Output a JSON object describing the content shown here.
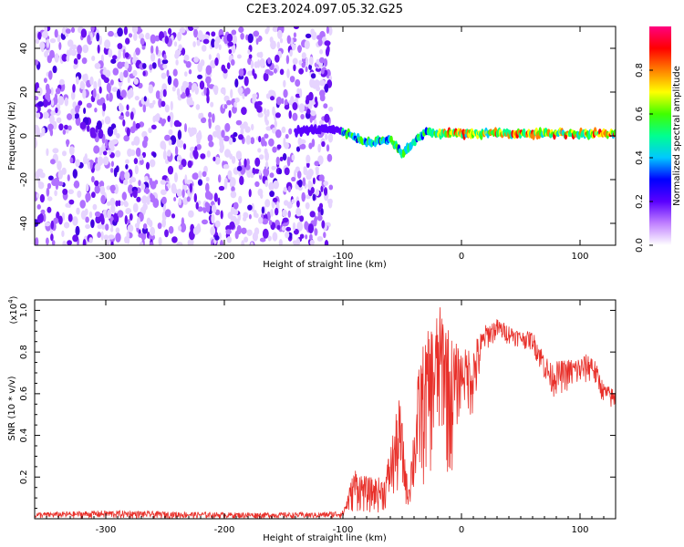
{
  "figure": {
    "title": "C2E3.2024.097.05.32.G25"
  },
  "chart_data": [
    {
      "type": "heatmap",
      "xlabel": "Height of straight line (km)",
      "ylabel": "Frequency (Hz)",
      "xlim": [
        -360,
        130
      ],
      "ylim": [
        -50,
        50
      ],
      "x_ticks": [
        -300,
        -200,
        -100,
        0,
        100
      ],
      "y_ticks": [
        -40,
        -20,
        0,
        20,
        40
      ],
      "colorbar": {
        "label": "Normalized spectral amplitude",
        "range": [
          0,
          1
        ],
        "ticks": [
          "0.0",
          "0.2",
          "0.4",
          "0.6",
          "0.8"
        ],
        "tick_values": [
          0.0,
          0.2,
          0.4,
          0.6,
          0.8
        ],
        "colors": [
          "#ffffff",
          "#c080ff",
          "#5a00ff",
          "#0000ff",
          "#00c8ff",
          "#00ff90",
          "#40ff00",
          "#ffff00",
          "#ff8000",
          "#ff0000",
          "#ff0080"
        ]
      },
      "noise_region": {
        "x_range": [
          -360,
          -110
        ],
        "f_range": [
          -50,
          50
        ]
      },
      "signal_track": [
        {
          "x": -140,
          "f": 2
        },
        {
          "x": -120,
          "f": 3
        },
        {
          "x": -100,
          "f": 2
        },
        {
          "x": -80,
          "f": -3
        },
        {
          "x": -60,
          "f": -2
        },
        {
          "x": -50,
          "f": -8
        },
        {
          "x": -40,
          "f": -3
        },
        {
          "x": -30,
          "f": 2
        },
        {
          "x": -20,
          "f": 1
        },
        {
          "x": 0,
          "f": 1
        },
        {
          "x": 50,
          "f": 1
        },
        {
          "x": 100,
          "f": 1
        },
        {
          "x": 130,
          "f": 1
        }
      ]
    },
    {
      "type": "line",
      "xlabel": "Height of straight line (km)",
      "ylabel": "SNR (10 * v/v)",
      "y_multiplier": "(x10",
      "y_multiplier_exp": "4",
      "y_multiplier_close": ")",
      "xlim": [
        -360,
        130
      ],
      "ylim": [
        0,
        1.05
      ],
      "x_ticks": [
        -300,
        -200,
        -100,
        0,
        100
      ],
      "y_ticks": [
        0.2,
        0.4,
        0.6,
        0.8,
        1.0
      ],
      "y_tick_labels": [
        "0.2",
        "0.4",
        "0.6",
        "0.8",
        "1.0"
      ],
      "series": [
        {
          "color": "#e8302a",
          "envelope": [
            {
              "x": -360,
              "lo": 0.0,
              "hi": 0.03
            },
            {
              "x": -300,
              "lo": 0.0,
              "hi": 0.04
            },
            {
              "x": -200,
              "lo": 0.0,
              "hi": 0.03
            },
            {
              "x": -120,
              "lo": 0.0,
              "hi": 0.03
            },
            {
              "x": -100,
              "lo": 0.0,
              "hi": 0.04
            },
            {
              "x": -90,
              "lo": 0.03,
              "hi": 0.25
            },
            {
              "x": -80,
              "lo": 0.02,
              "hi": 0.2
            },
            {
              "x": -65,
              "lo": 0.03,
              "hi": 0.2
            },
            {
              "x": -52,
              "lo": 0.08,
              "hi": 0.6
            },
            {
              "x": -45,
              "lo": 0.05,
              "hi": 0.15
            },
            {
              "x": -35,
              "lo": 0.1,
              "hi": 0.8
            },
            {
              "x": -25,
              "lo": 0.2,
              "hi": 0.95
            },
            {
              "x": -15,
              "lo": 0.35,
              "hi": 1.05
            },
            {
              "x": -10,
              "lo": 0.1,
              "hi": 0.9
            },
            {
              "x": 0,
              "lo": 0.55,
              "hi": 0.8
            },
            {
              "x": 10,
              "lo": 0.45,
              "hi": 0.85
            },
            {
              "x": 20,
              "lo": 0.8,
              "hi": 0.93
            },
            {
              "x": 30,
              "lo": 0.85,
              "hi": 0.96
            },
            {
              "x": 50,
              "lo": 0.82,
              "hi": 0.9
            },
            {
              "x": 60,
              "lo": 0.8,
              "hi": 0.9
            },
            {
              "x": 75,
              "lo": 0.58,
              "hi": 0.75
            },
            {
              "x": 100,
              "lo": 0.62,
              "hi": 0.78
            },
            {
              "x": 110,
              "lo": 0.65,
              "hi": 0.8
            },
            {
              "x": 120,
              "lo": 0.55,
              "hi": 0.65
            },
            {
              "x": 130,
              "lo": 0.5,
              "hi": 0.62
            }
          ]
        }
      ]
    }
  ]
}
